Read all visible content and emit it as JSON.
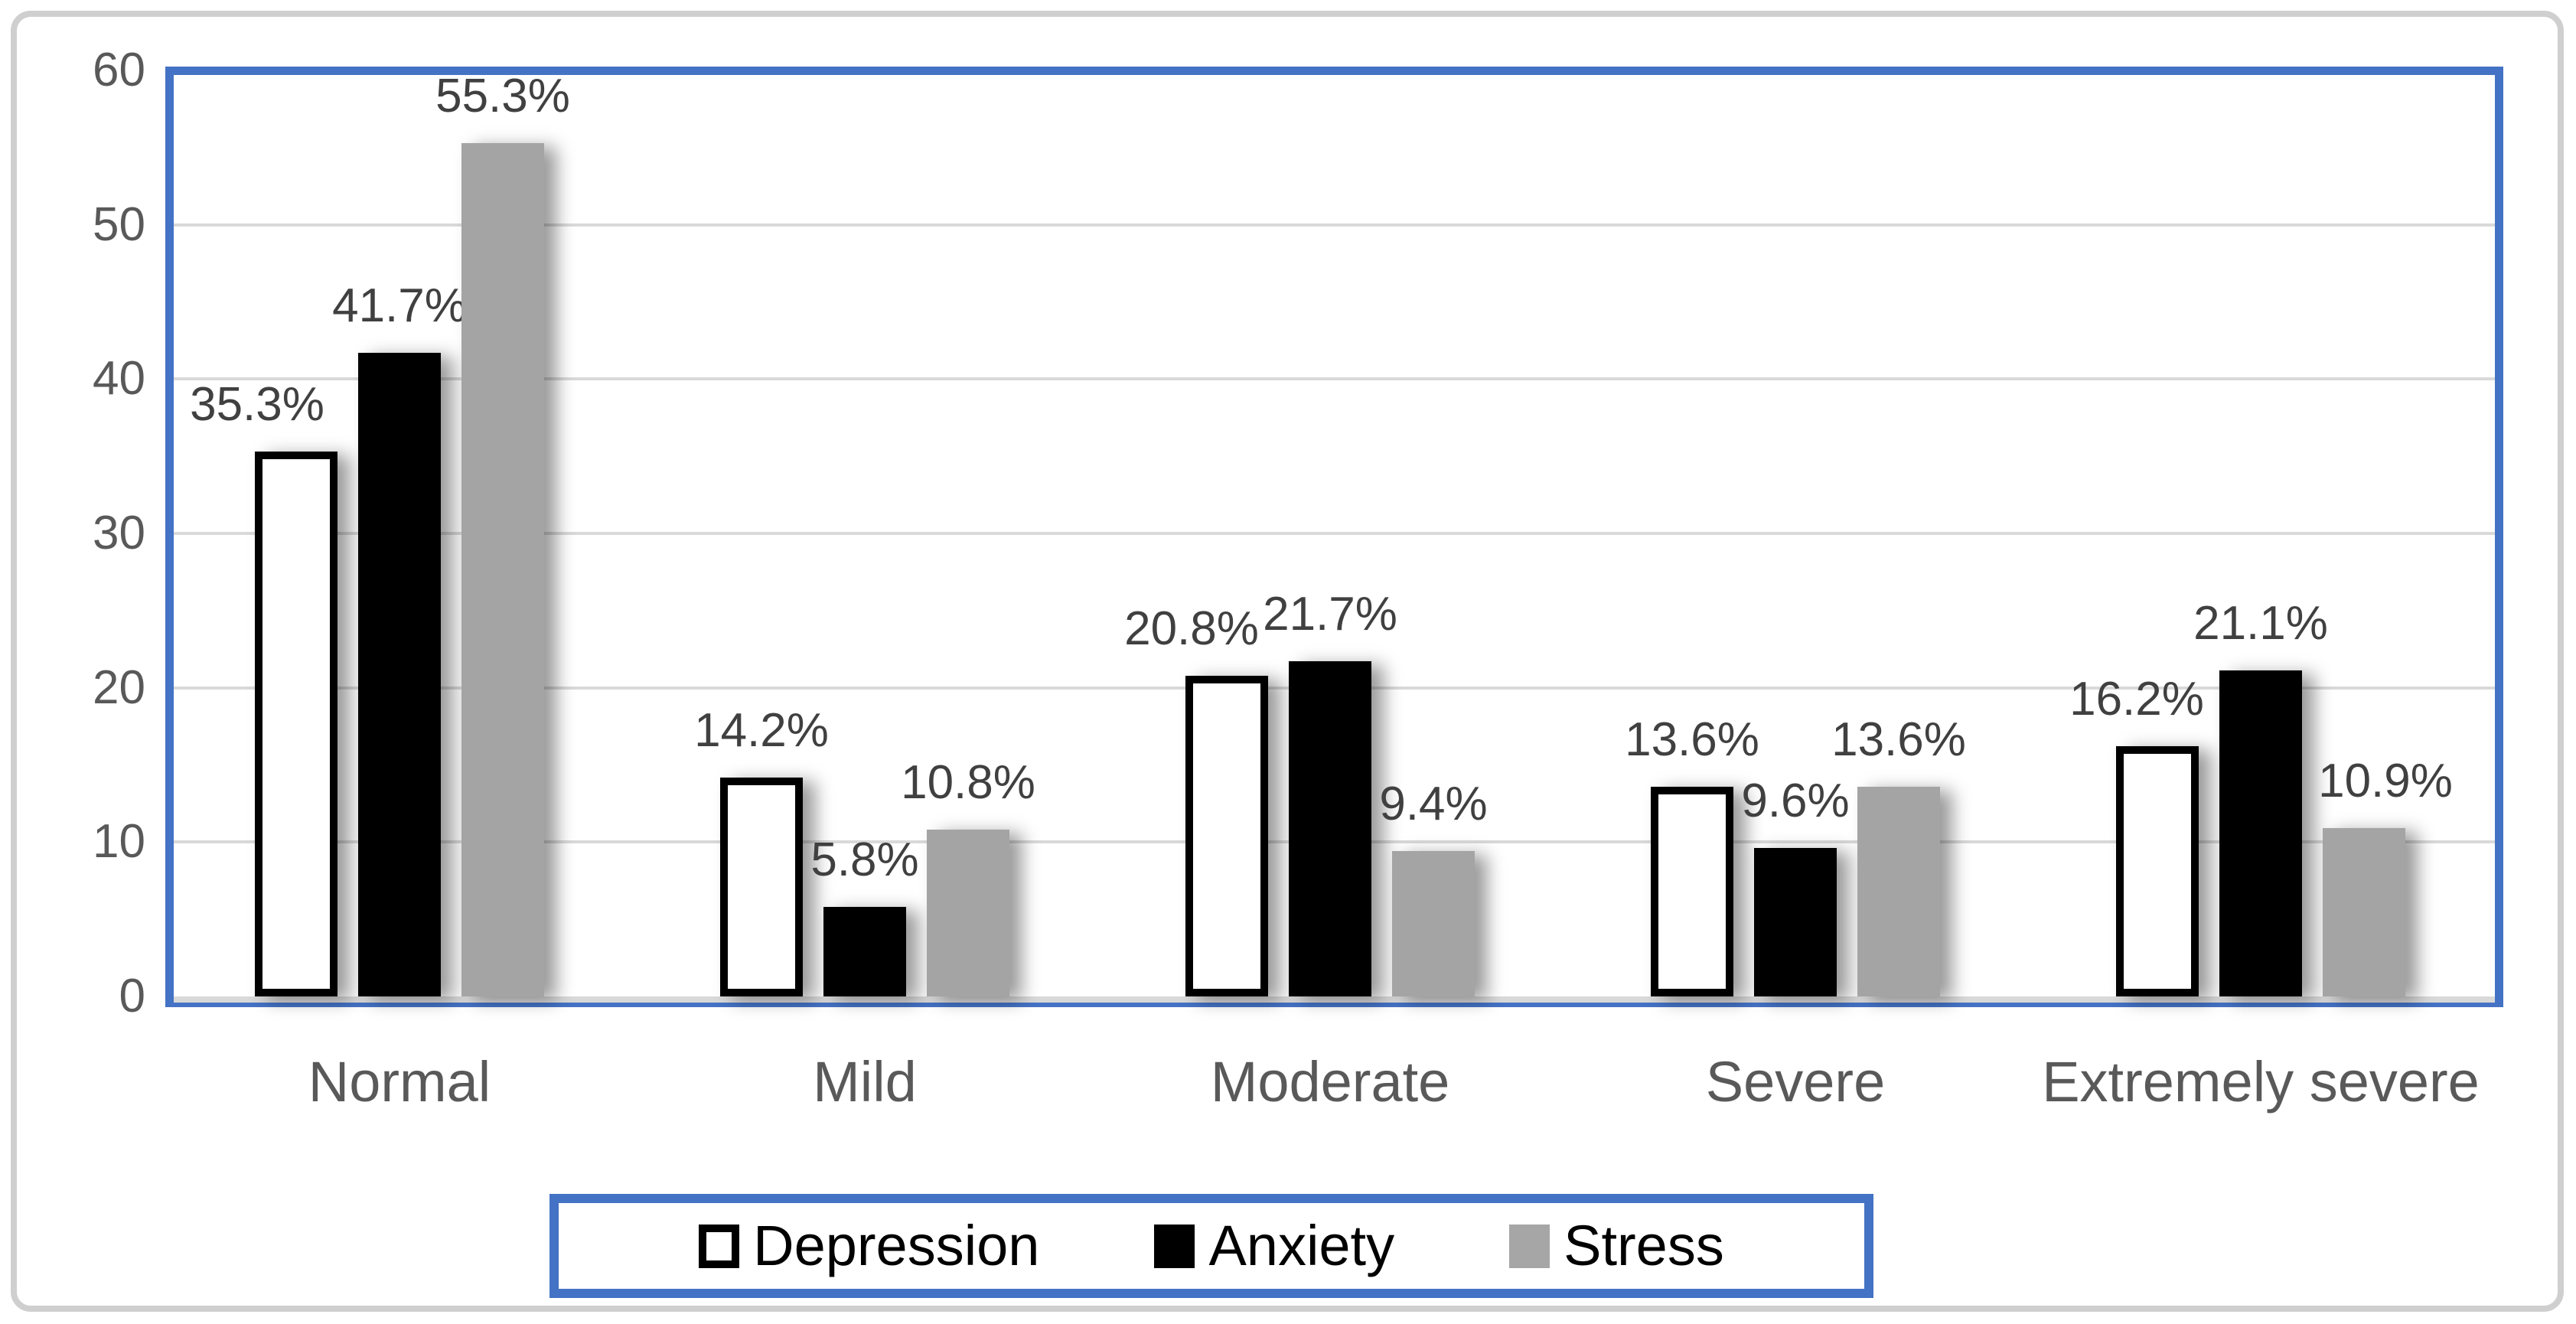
{
  "chart_data": {
    "type": "bar",
    "title": "",
    "categories": [
      "Normal",
      "Mild",
      "Moderate",
      "Severe",
      "Extremely severe"
    ],
    "series": [
      {
        "name": "Depression",
        "values": [
          35.3,
          14.2,
          20.8,
          13.6,
          16.2
        ],
        "labels": [
          "35.3%",
          "14.2%",
          "20.8%",
          "13.6%",
          "16.2%"
        ],
        "fill": "#ffffff",
        "border": "#000000"
      },
      {
        "name": "Anxiety",
        "values": [
          41.7,
          5.8,
          21.7,
          9.6,
          21.1
        ],
        "labels": [
          "41.7%",
          "5.8%",
          "21.7%",
          "9.6%",
          "21.1%"
        ],
        "fill": "#000000",
        "border": "#000000"
      },
      {
        "name": "Stress",
        "values": [
          55.3,
          10.8,
          9.4,
          13.6,
          10.9
        ],
        "labels": [
          "55.3%",
          "10.8%",
          "9.4%",
          "13.6%",
          "10.9%"
        ],
        "fill": "#a4a4a4",
        "border": "#a4a4a4"
      }
    ],
    "y_axis": {
      "min": 0,
      "max": 60,
      "step": 10,
      "tick_labels": [
        "0",
        "10",
        "20",
        "30",
        "40",
        "50",
        "60"
      ]
    },
    "legend": {
      "position": "bottom",
      "entries": [
        "Depression",
        "Anxiety",
        "Stress"
      ]
    },
    "grid": true,
    "data_label_format": "0.0%"
  },
  "colors": {
    "plot_border": "#4472C4",
    "legend_border": "#4472C4",
    "gridline": "#d9d9d9",
    "axis_line": "#d9d9d9",
    "tick_text": "#595959",
    "category_text": "#595959",
    "data_label_text": "#404040",
    "legend_text": "#000000",
    "outer_border": "#cfcfcf",
    "background": "#ffffff",
    "series_fills": [
      "#ffffff",
      "#000000",
      "#a4a4a4"
    ]
  }
}
